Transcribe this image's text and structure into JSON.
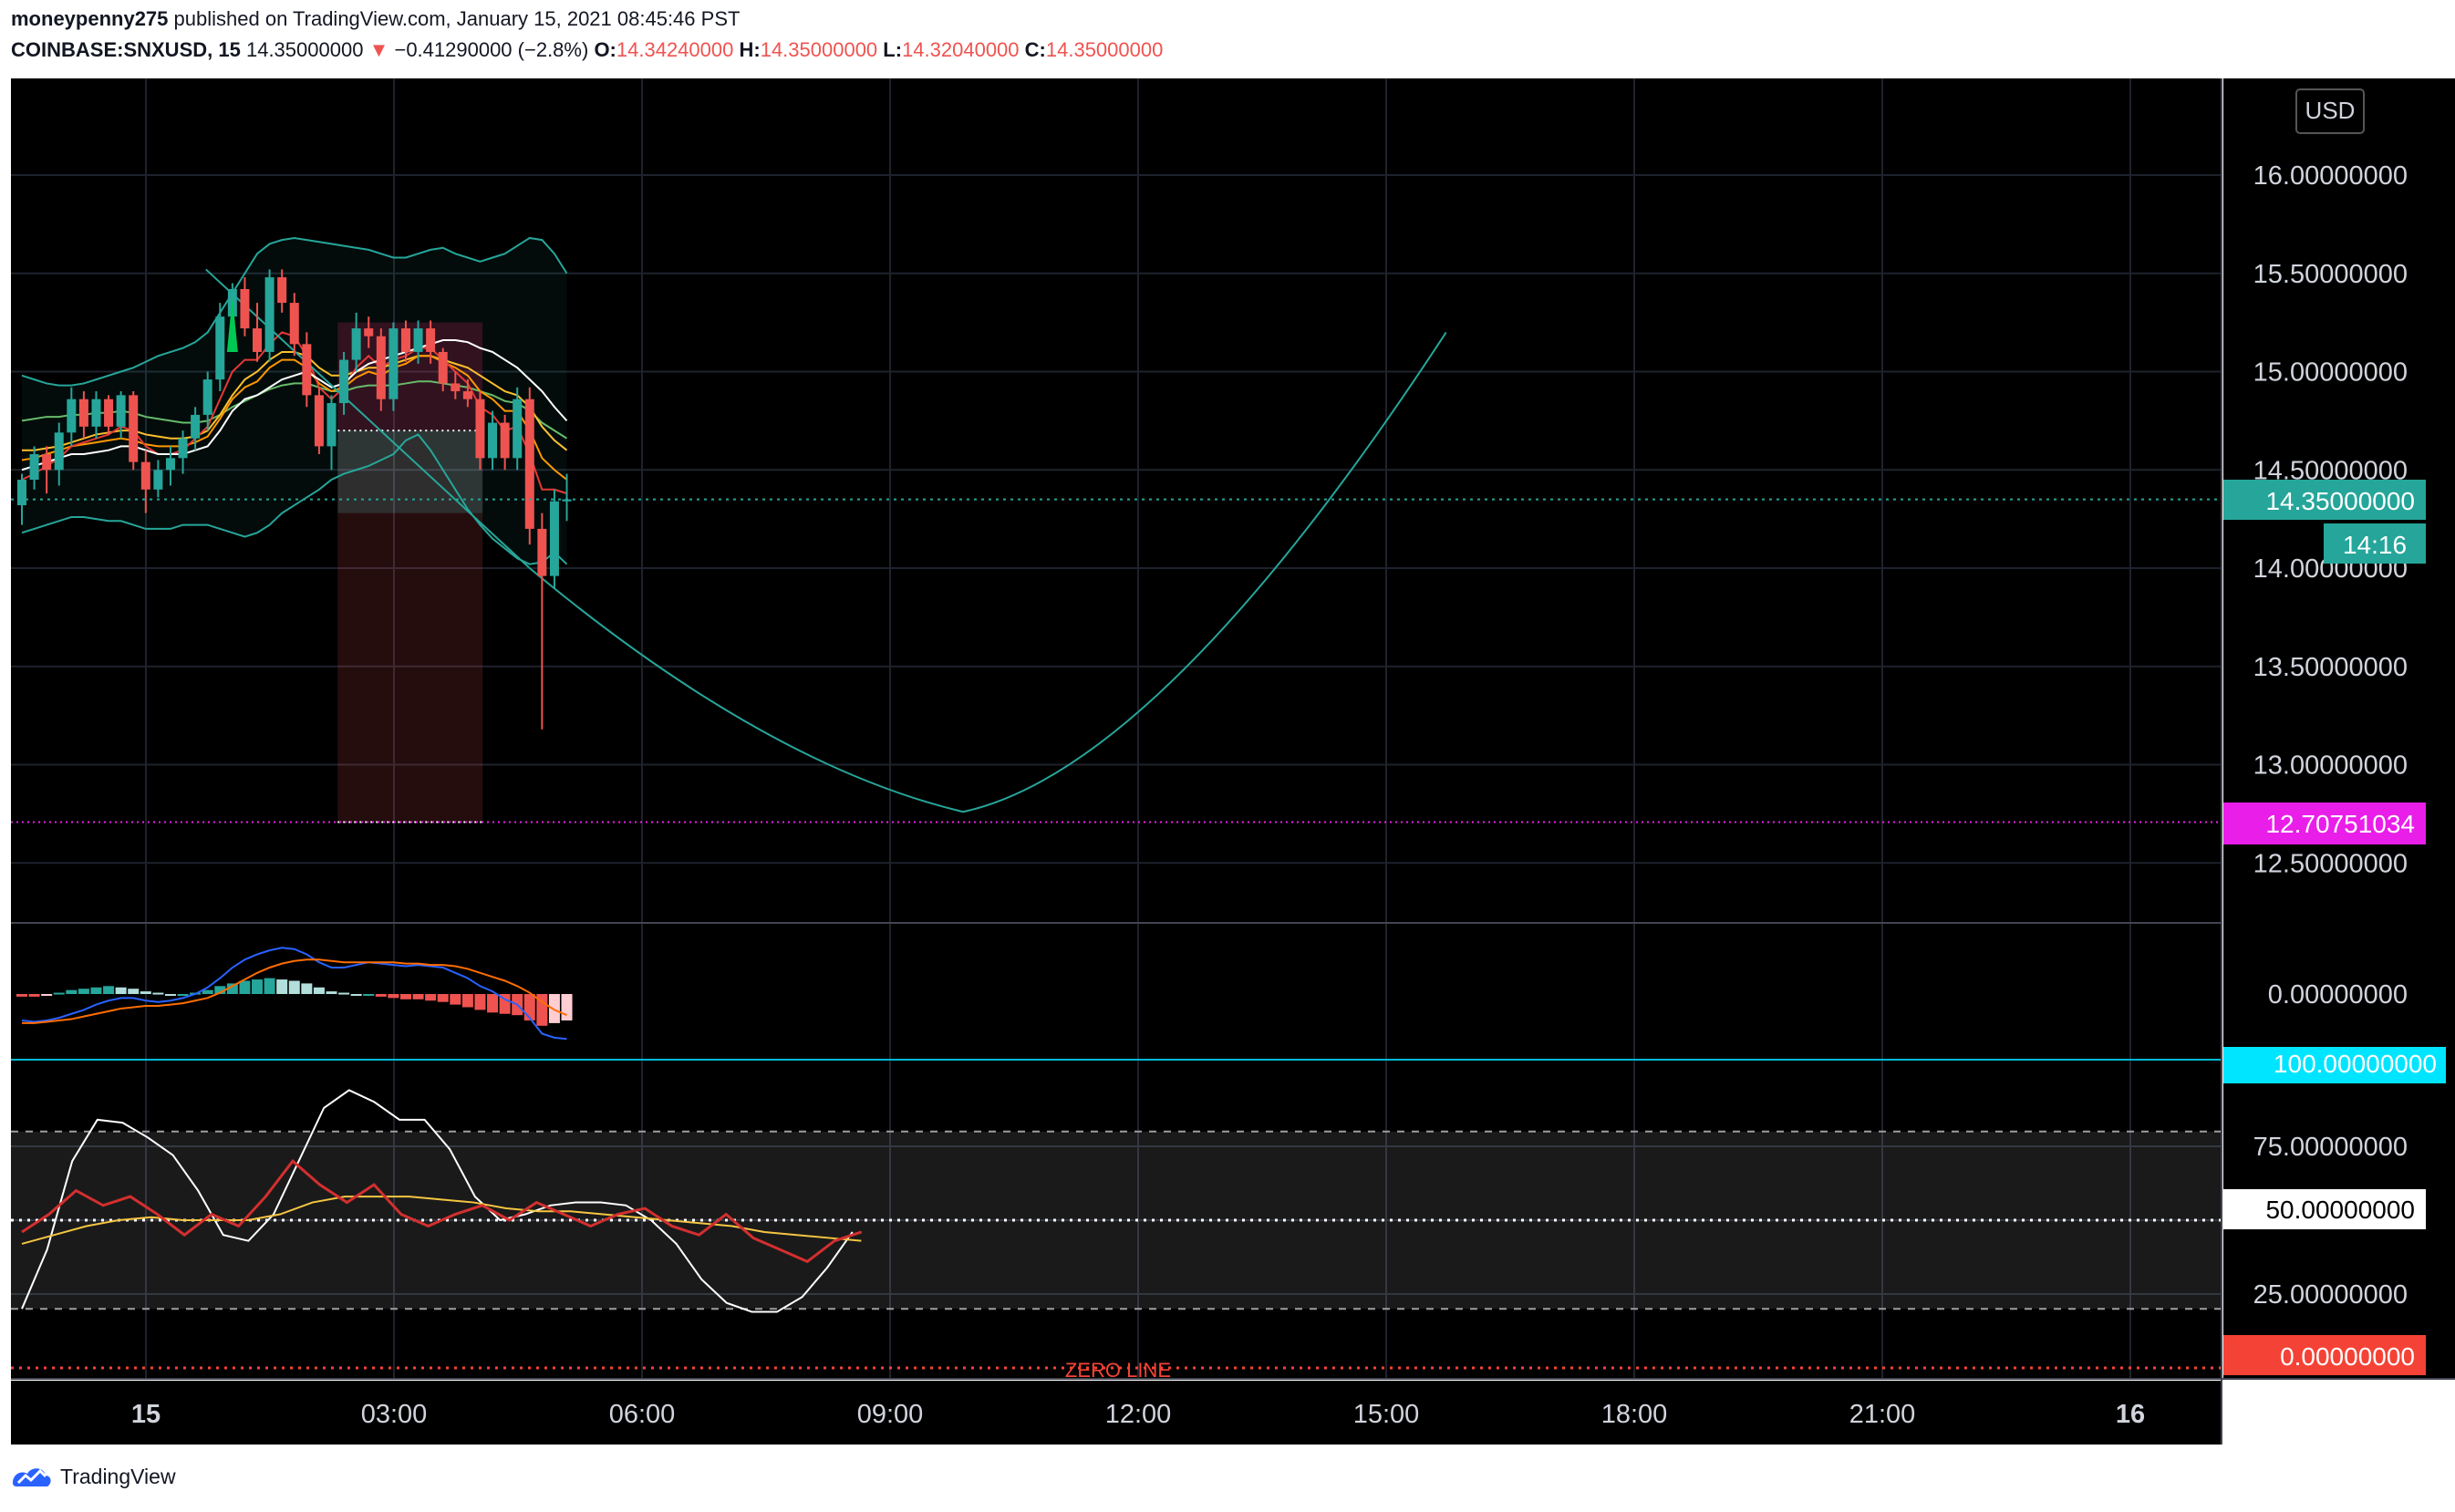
{
  "header": {
    "author": "moneypenny275",
    "published": "published on TradingView.com, January 15, 2021 08:45:46 PST",
    "symbol": "COINBASE:SNXUSD, 15",
    "last": "14.35000000",
    "change": "−0.41290000 (−2.8%)",
    "open_label": "O:",
    "open": "14.34240000",
    "high_label": "H:",
    "high": "14.35000000",
    "low_label": "L:",
    "low": "14.32040000",
    "close_label": "C:",
    "close": "14.35000000"
  },
  "currency_button": "USD",
  "footer": {
    "brand": "TradingView"
  },
  "colors": {
    "background": "#000000",
    "up": "#26a69a",
    "down": "#ef5350",
    "bands": "#26a69a",
    "target": "#e91ee9",
    "macd": "#2962ff",
    "signal": "#ff6d00",
    "stoch_k": "#ffffff",
    "stoch_d": "#f5c542",
    "rsi": "#d32f2f"
  },
  "chart_data": [
    {
      "type": "candlestick",
      "panel": "price",
      "x_tick_labels": [
        "15",
        "03:00",
        "06:00",
        "09:00",
        "12:00",
        "15:00",
        "18:00",
        "21:00",
        "16"
      ],
      "y_tick_labels": [
        "16.00000000",
        "15.50000000",
        "15.00000000",
        "14.50000000",
        "14.00000000",
        "13.50000000",
        "13.00000000",
        "12.50000000"
      ],
      "ylim": [
        12.0,
        16.5
      ],
      "current_price_label": "14.35000000",
      "countdown_label": "14:16",
      "target_label": "12.70751034",
      "target_price": 12.7075,
      "candles_ohlc": [
        [
          14.32,
          14.48,
          14.22,
          14.45
        ],
        [
          14.45,
          14.62,
          14.4,
          14.58
        ],
        [
          14.58,
          14.62,
          14.38,
          14.5
        ],
        [
          14.5,
          14.74,
          14.42,
          14.69
        ],
        [
          14.69,
          14.92,
          14.62,
          14.86
        ],
        [
          14.86,
          14.9,
          14.66,
          14.72
        ],
        [
          14.72,
          14.9,
          14.66,
          14.86
        ],
        [
          14.86,
          14.88,
          14.68,
          14.72
        ],
        [
          14.72,
          14.9,
          14.66,
          14.88
        ],
        [
          14.88,
          14.9,
          14.5,
          14.54
        ],
        [
          14.54,
          14.6,
          14.28,
          14.4
        ],
        [
          14.4,
          14.55,
          14.36,
          14.5
        ],
        [
          14.5,
          14.62,
          14.42,
          14.56
        ],
        [
          14.56,
          14.7,
          14.48,
          14.66
        ],
        [
          14.66,
          14.82,
          14.6,
          14.78
        ],
        [
          14.78,
          15.0,
          14.7,
          14.96
        ],
        [
          14.96,
          15.35,
          14.9,
          15.28
        ],
        [
          15.28,
          15.45,
          15.15,
          15.42
        ],
        [
          15.42,
          15.48,
          15.18,
          15.22
        ],
        [
          15.22,
          15.35,
          15.05,
          15.1
        ],
        [
          15.1,
          15.52,
          15.05,
          15.48
        ],
        [
          15.48,
          15.52,
          15.3,
          15.35
        ],
        [
          15.35,
          15.4,
          15.08,
          15.14
        ],
        [
          15.14,
          15.2,
          14.82,
          14.88
        ],
        [
          14.88,
          14.92,
          14.58,
          14.62
        ],
        [
          14.62,
          14.88,
          14.5,
          14.84
        ],
        [
          14.84,
          15.1,
          14.78,
          15.06
        ],
        [
          15.06,
          15.3,
          15.0,
          15.22
        ],
        [
          15.22,
          15.28,
          15.12,
          15.18
        ],
        [
          15.18,
          15.22,
          14.8,
          14.86
        ],
        [
          14.86,
          15.25,
          14.8,
          15.22
        ],
        [
          15.22,
          15.26,
          15.05,
          15.1
        ],
        [
          15.1,
          15.26,
          15.04,
          15.22
        ],
        [
          15.22,
          15.26,
          15.04,
          15.1
        ],
        [
          15.1,
          15.12,
          14.9,
          14.94
        ],
        [
          14.94,
          15.0,
          14.86,
          14.9
        ],
        [
          14.9,
          14.96,
          14.82,
          14.86
        ],
        [
          14.86,
          14.9,
          14.5,
          14.56
        ],
        [
          14.56,
          14.8,
          14.5,
          14.74
        ],
        [
          14.74,
          14.78,
          14.5,
          14.56
        ],
        [
          14.56,
          14.92,
          14.5,
          14.86
        ],
        [
          14.86,
          14.92,
          14.12,
          14.2
        ],
        [
          14.2,
          14.28,
          13.18,
          13.96
        ],
        [
          13.96,
          14.4,
          13.9,
          14.34
        ],
        [
          14.34,
          14.48,
          14.24,
          14.35
        ]
      ],
      "bollinger_upper": [
        14.98,
        14.96,
        14.94,
        14.93,
        14.93,
        14.94,
        14.96,
        14.98,
        15.0,
        15.02,
        15.05,
        15.08,
        15.1,
        15.12,
        15.15,
        15.2,
        15.3,
        15.4,
        15.5,
        15.6,
        15.65,
        15.67,
        15.68,
        15.67,
        15.66,
        15.65,
        15.64,
        15.63,
        15.62,
        15.6,
        15.58,
        15.58,
        15.6,
        15.62,
        15.63,
        15.6,
        15.58,
        15.56,
        15.58,
        15.6,
        15.64,
        15.68,
        15.67,
        15.6,
        15.5
      ],
      "bollinger_lower": [
        14.18,
        14.2,
        14.22,
        14.24,
        14.26,
        14.26,
        14.25,
        14.24,
        14.24,
        14.22,
        14.2,
        14.2,
        14.2,
        14.22,
        14.22,
        14.22,
        14.2,
        14.18,
        14.16,
        14.18,
        14.22,
        14.28,
        14.32,
        14.36,
        14.4,
        14.45,
        14.48,
        14.5,
        14.52,
        14.55,
        14.58,
        14.65,
        14.68,
        14.6,
        14.5,
        14.4,
        14.3,
        14.22,
        14.15,
        14.1,
        14.05,
        14.02,
        14.03,
        14.08,
        14.02
      ],
      "ma_white": [
        14.5,
        14.52,
        14.54,
        14.56,
        14.58,
        14.58,
        14.59,
        14.6,
        14.62,
        14.62,
        14.6,
        14.58,
        14.58,
        14.58,
        14.6,
        14.62,
        14.7,
        14.8,
        14.86,
        14.88,
        14.92,
        14.96,
        14.98,
        15.0,
        14.96,
        14.92,
        14.94,
        15.0,
        15.04,
        15.06,
        15.08,
        15.1,
        15.12,
        15.14,
        15.16,
        15.16,
        15.15,
        15.12,
        15.1,
        15.06,
        15.02,
        14.96,
        14.9,
        14.82,
        14.75
      ],
      "ma_orange": [
        14.55,
        14.56,
        14.58,
        14.6,
        14.62,
        14.63,
        14.64,
        14.65,
        14.66,
        14.65,
        14.63,
        14.62,
        14.62,
        14.62,
        14.64,
        14.67,
        14.76,
        14.86,
        14.92,
        14.95,
        15.02,
        15.06,
        15.06,
        15.02,
        14.94,
        14.9,
        14.92,
        14.97,
        15.0,
        14.98,
        15.02,
        15.04,
        15.08,
        15.08,
        15.05,
        15.02,
        14.98,
        14.9,
        14.86,
        14.8,
        14.8,
        14.7,
        14.56,
        14.5,
        14.45
      ],
      "ma_yellow": [
        14.6,
        14.6,
        14.61,
        14.62,
        14.64,
        14.66,
        14.68,
        14.69,
        14.7,
        14.7,
        14.68,
        14.67,
        14.66,
        14.66,
        14.67,
        14.7,
        14.78,
        14.88,
        14.96,
        15.0,
        15.06,
        15.1,
        15.1,
        15.08,
        15.02,
        14.98,
        14.98,
        15.0,
        15.02,
        15.02,
        15.04,
        15.06,
        15.08,
        15.08,
        15.06,
        15.04,
        15.02,
        14.98,
        14.94,
        14.9,
        14.88,
        14.82,
        14.72,
        14.65,
        14.6
      ],
      "ma_green": [
        14.75,
        14.76,
        14.77,
        14.77,
        14.78,
        14.78,
        14.79,
        14.79,
        14.8,
        14.79,
        14.77,
        14.76,
        14.75,
        14.74,
        14.74,
        14.75,
        14.78,
        14.82,
        14.85,
        14.88,
        14.91,
        14.93,
        14.94,
        14.94,
        14.92,
        14.9,
        14.9,
        14.92,
        14.93,
        14.93,
        14.93,
        14.94,
        14.95,
        14.95,
        14.94,
        14.93,
        14.92,
        14.9,
        14.88,
        14.85,
        14.84,
        14.8,
        14.74,
        14.7,
        14.66
      ],
      "ma_red": [
        14.45,
        14.48,
        14.52,
        14.56,
        14.62,
        14.64,
        14.66,
        14.68,
        14.72,
        14.7,
        14.62,
        14.58,
        14.58,
        14.6,
        14.66,
        14.72,
        14.86,
        15.0,
        15.06,
        15.06,
        15.14,
        15.2,
        15.18,
        15.08,
        14.92,
        14.86,
        14.92,
        15.02,
        15.08,
        15.02,
        15.06,
        15.08,
        15.12,
        15.12,
        15.06,
        15.0,
        14.94,
        14.82,
        14.78,
        14.7,
        14.72,
        14.58,
        14.4,
        14.4,
        14.38
      ],
      "projection_curve": [
        [
          14.86,
          15.52
        ],
        [
          41.0,
          14.0
        ],
        [
          60.0,
          13.0
        ],
        [
          76.0,
          12.76
        ],
        [
          92.0,
          12.98
        ],
        [
          115.0,
          15.2
        ]
      ]
    },
    {
      "type": "bar",
      "panel": "macd",
      "y_tick_labels": [
        "0.00000000"
      ],
      "histogram": [
        -0.02,
        -0.02,
        -0.01,
        0.01,
        0.03,
        0.04,
        0.05,
        0.06,
        0.05,
        0.04,
        0.02,
        0.01,
        0.0,
        0.0,
        0.01,
        0.03,
        0.06,
        0.08,
        0.1,
        0.11,
        0.12,
        0.11,
        0.1,
        0.08,
        0.05,
        0.02,
        0.01,
        0.0,
        0.0,
        -0.02,
        -0.03,
        -0.04,
        -0.04,
        -0.05,
        -0.06,
        -0.08,
        -0.1,
        -0.12,
        -0.14,
        -0.15,
        -0.16,
        -0.2,
        -0.24,
        -0.22,
        -0.2
      ],
      "macd_line": [
        -0.2,
        -0.21,
        -0.2,
        -0.18,
        -0.15,
        -0.12,
        -0.08,
        -0.05,
        -0.03,
        -0.03,
        -0.05,
        -0.06,
        -0.05,
        -0.03,
        0.0,
        0.05,
        0.12,
        0.2,
        0.26,
        0.3,
        0.33,
        0.35,
        0.34,
        0.3,
        0.24,
        0.2,
        0.2,
        0.22,
        0.24,
        0.23,
        0.22,
        0.21,
        0.22,
        0.21,
        0.2,
        0.16,
        0.12,
        0.06,
        0.02,
        -0.04,
        -0.08,
        -0.18,
        -0.3,
        -0.33,
        -0.34
      ],
      "signal_line": [
        -0.22,
        -0.22,
        -0.21,
        -0.2,
        -0.19,
        -0.17,
        -0.15,
        -0.13,
        -0.11,
        -0.1,
        -0.09,
        -0.09,
        -0.08,
        -0.07,
        -0.05,
        -0.03,
        0.01,
        0.06,
        0.11,
        0.16,
        0.2,
        0.23,
        0.25,
        0.26,
        0.26,
        0.25,
        0.24,
        0.24,
        0.24,
        0.24,
        0.24,
        0.23,
        0.23,
        0.22,
        0.22,
        0.21,
        0.19,
        0.16,
        0.13,
        0.1,
        0.06,
        0.01,
        -0.06,
        -0.12,
        -0.16
      ]
    },
    {
      "type": "line",
      "panel": "oscillator",
      "y_tick_labels": [
        "100.00000000",
        "75.00000000",
        "50.00000000",
        "25.00000000",
        "0.00000000"
      ],
      "zero_line_label": "ZERO LINE",
      "ylim": [
        -3,
        103
      ],
      "levels": [
        80,
        50,
        20,
        0
      ],
      "stoch_k": [
        20,
        40,
        70,
        84,
        83,
        78,
        72,
        60,
        45,
        43,
        52,
        70,
        88,
        94,
        90,
        84,
        84,
        74,
        58,
        50,
        52,
        55,
        56,
        56,
        55,
        50,
        42,
        30,
        22,
        19,
        19,
        24,
        34,
        46
      ],
      "stoch_d": [
        42,
        45,
        48,
        50,
        51,
        50,
        50,
        50,
        52,
        56,
        58,
        58,
        58,
        57,
        56,
        54,
        53,
        53,
        52,
        51,
        50,
        49,
        48,
        46,
        45,
        44,
        43
      ],
      "rsi": [
        46,
        52,
        60,
        55,
        58,
        52,
        45,
        52,
        48,
        58,
        70,
        62,
        56,
        62,
        52,
        48,
        52,
        55,
        50,
        56,
        52,
        48,
        52,
        54,
        48,
        45,
        52,
        44,
        40,
        36,
        43,
        46
      ]
    }
  ]
}
